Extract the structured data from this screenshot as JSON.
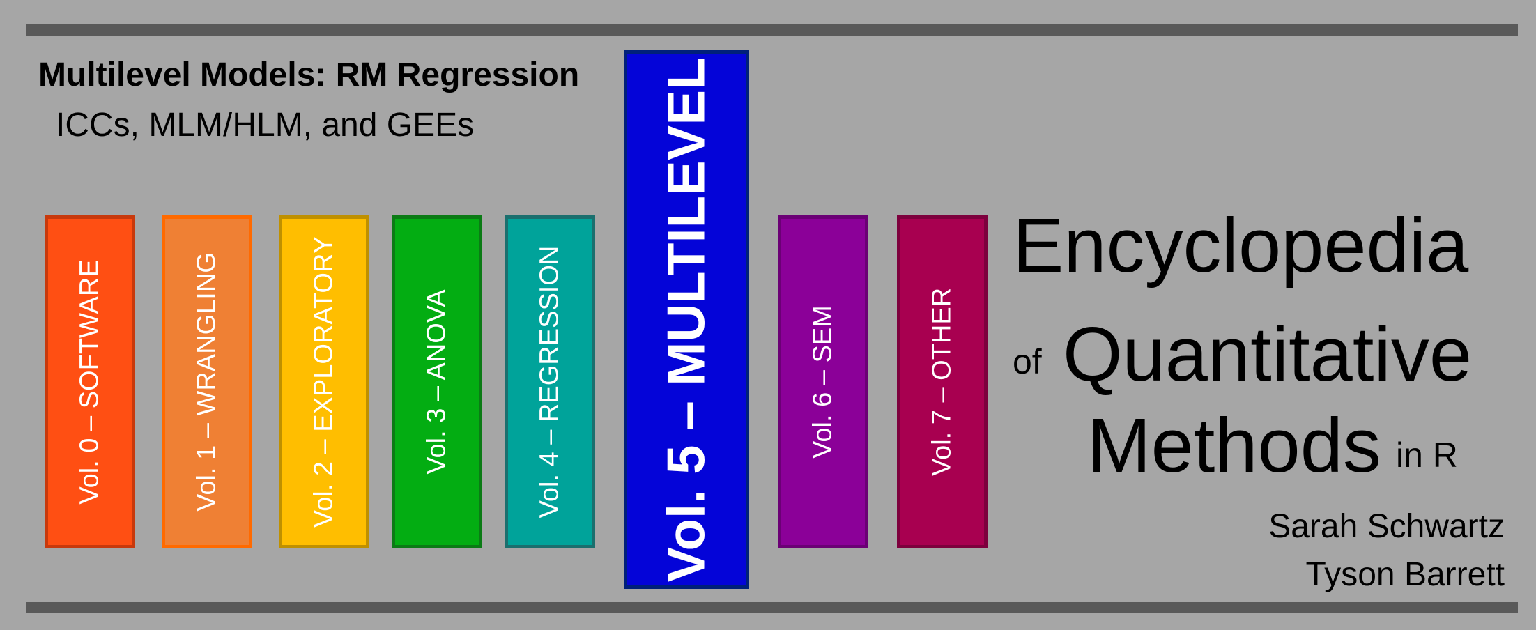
{
  "subtitle": {
    "main": "Multilevel Models: RM Regression",
    "sub": "ICCs, MLM/HLM, and GEEs"
  },
  "volumes": [
    {
      "label": "Vol. 0 – SOFTWARE",
      "fill": "#ff4f13",
      "border": "#c8390c"
    },
    {
      "label": "Vol. 1 – WRANGLING",
      "fill": "#ef8034",
      "border": "#ff6a00"
    },
    {
      "label": "Vol. 2 – EXPLORATORY",
      "fill": "#ffbe00",
      "border": "#bf9000"
    },
    {
      "label": "Vol. 3 – ANOVA",
      "fill": "#03ad12",
      "border": "#0b7b15"
    },
    {
      "label": "Vol. 4 – REGRESSION",
      "fill": "#00a39a",
      "border": "#1a6f6e"
    },
    {
      "label": "Vol. 5 – MULTILEVEL",
      "fill": "#0404d8",
      "border": "#00207a"
    },
    {
      "label": "Vol. 6 – SEM",
      "fill": "#8b0098",
      "border": "#6b0075"
    },
    {
      "label": "Vol. 7 – OTHER",
      "fill": "#a80050",
      "border": "#7d003d"
    }
  ],
  "title": {
    "line1": "Encyclopedia",
    "of": "of",
    "line2": "Quantitative",
    "line3": "Methods",
    "in_r": "in R"
  },
  "authors": [
    "Sarah Schwartz",
    "Tyson Barrett"
  ],
  "colors": {
    "background": "#a6a6a6",
    "rule": "#595959"
  }
}
